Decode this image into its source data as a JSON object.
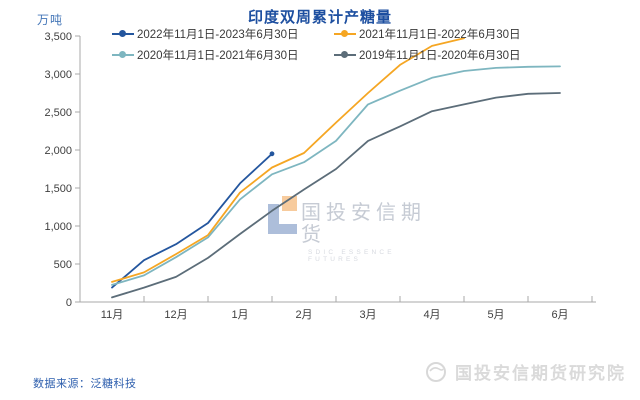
{
  "title": "印度双周累计产糖量",
  "y_axis_label": "万吨",
  "footer": {
    "source": "数据来源：泛糖科技"
  },
  "watermark": {
    "name": "国投安信期货",
    "subtitle": "SDIC ESSENCE FUTURES"
  },
  "brand": {
    "text": "国投安信期货研究院"
  },
  "colors": {
    "title": "#1d4fa0",
    "axis": "#a8a8a8",
    "tick_text": "#3f3f3f",
    "source_text": "#2e5fae",
    "watermark_text": "#c6cbd4",
    "brand_text": "#dadada",
    "wm_logo_blue": "#4a6fae",
    "wm_logo_orange": "#f0a14c"
  },
  "chart_data": {
    "type": "line",
    "title": "印度双周累计产糖量",
    "xlabel": "",
    "ylabel": "万吨",
    "ylim": [
      0,
      3500
    ],
    "ytick_step": 500,
    "grid": false,
    "legend_position": "top",
    "x_categories": [
      "11月",
      "12月",
      "1月",
      "2月",
      "3月",
      "4月",
      "5月",
      "6月"
    ],
    "points_x_unit": "months_from_nov_1 (0 = 11月1日, 0.5 = 11月15日)",
    "series": [
      {
        "name": "2022年11月1日-2023年6月30日",
        "color": "#24569E",
        "end_marker": true,
        "points": [
          [
            0.5,
            190
          ],
          [
            1,
            550
          ],
          [
            1.5,
            760
          ],
          [
            2,
            1040
          ],
          [
            2.5,
            1560
          ],
          [
            3,
            1950
          ]
        ]
      },
      {
        "name": "2021年11月1日-2022年6月30日",
        "color": "#F5A623",
        "end_marker": false,
        "points": [
          [
            0.5,
            265
          ],
          [
            1,
            390
          ],
          [
            1.5,
            630
          ],
          [
            2,
            880
          ],
          [
            2.5,
            1440
          ],
          [
            3,
            1770
          ],
          [
            3.5,
            1960
          ],
          [
            4,
            2360
          ],
          [
            4.5,
            2750
          ],
          [
            5,
            3120
          ],
          [
            5.5,
            3370
          ],
          [
            6,
            3470
          ]
        ]
      },
      {
        "name": "2020年11月1日-2021年6月30日",
        "color": "#7EB6C0",
        "end_marker": false,
        "points": [
          [
            0.5,
            225
          ],
          [
            1,
            350
          ],
          [
            1.5,
            590
          ],
          [
            2,
            850
          ],
          [
            2.5,
            1350
          ],
          [
            3,
            1680
          ],
          [
            3.5,
            1840
          ],
          [
            4,
            2120
          ],
          [
            4.5,
            2600
          ],
          [
            5,
            2780
          ],
          [
            5.5,
            2950
          ],
          [
            6,
            3040
          ],
          [
            6.5,
            3080
          ],
          [
            7,
            3095
          ],
          [
            7.5,
            3100
          ]
        ]
      },
      {
        "name": "2019年11月1日-2020年6月30日",
        "color": "#5C6D79",
        "end_marker": false,
        "points": [
          [
            0.5,
            60
          ],
          [
            1,
            190
          ],
          [
            1.5,
            330
          ],
          [
            2,
            580
          ],
          [
            2.5,
            895
          ],
          [
            3,
            1200
          ],
          [
            3.5,
            1480
          ],
          [
            4,
            1750
          ],
          [
            4.5,
            2120
          ],
          [
            5,
            2310
          ],
          [
            5.5,
            2510
          ],
          [
            6,
            2600
          ],
          [
            6.5,
            2690
          ],
          [
            7,
            2740
          ],
          [
            7.5,
            2750
          ]
        ]
      }
    ]
  }
}
